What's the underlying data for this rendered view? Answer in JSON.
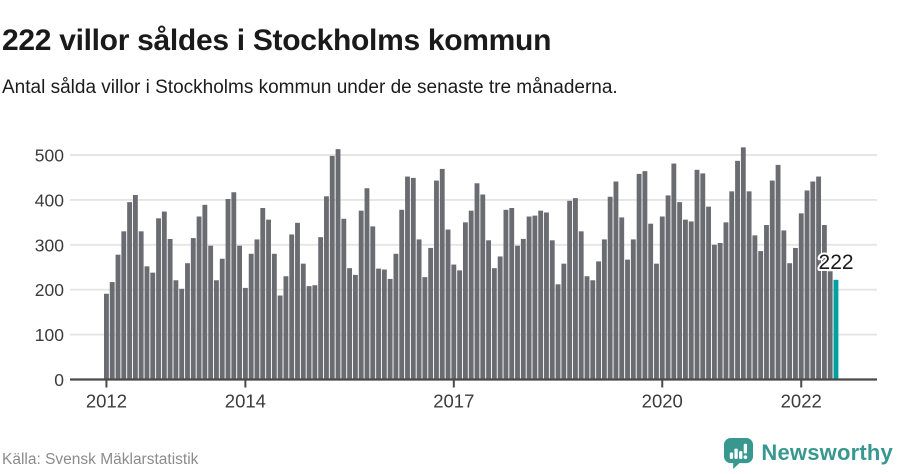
{
  "title": "222 villor såldes i Stockholms kommun",
  "subtitle": "Antal sålda villor i Stockholms kommun under de senaste tre månaderna.",
  "source": "Källa: Svensk Mäklarstatistik",
  "brand": {
    "name": "Newsworthy",
    "icon": "newsworthy-speech-bubble-barchart-icon",
    "color": "#38988f"
  },
  "annotation": {
    "label": "222"
  },
  "colors": {
    "bar": "#6b6b72",
    "highlight": "#00a1a0",
    "grid": "#e5e5e5",
    "axis": "#4a4a4a",
    "tick_label": "#3c3c3c",
    "annotation_text": "#1a1a1a",
    "annotation_halo": "#ffffff"
  },
  "chart_data": {
    "type": "bar",
    "title": "222 villor såldes i Stockholms kommun",
    "xlabel": "",
    "ylabel": "",
    "frequency": "monthly",
    "x_start": "2012-01",
    "x_end": "2022-07",
    "ylim": [
      0,
      500
    ],
    "yticks": [
      0,
      100,
      200,
      300,
      400,
      500
    ],
    "xticks": [
      "2012",
      "2014",
      "2017",
      "2020",
      "2022"
    ],
    "grid": true,
    "legend": false,
    "highlight_last_value": 222,
    "values_by_year": [
      {
        "year": 2012,
        "monthly": [
          191,
          217,
          278,
          330,
          395,
          411,
          330,
          252,
          238,
          359,
          374,
          313
        ]
      },
      {
        "year": 2013,
        "monthly": [
          221,
          202,
          259,
          315,
          363,
          389,
          298,
          221,
          269,
          402,
          417,
          298
        ]
      },
      {
        "year": 2014,
        "monthly": [
          204,
          280,
          312,
          382,
          356,
          280,
          187,
          230,
          323,
          349,
          258,
          208
        ]
      },
      {
        "year": 2015,
        "monthly": [
          210,
          317,
          408,
          498,
          513,
          358,
          248,
          233,
          376,
          426,
          341,
          247
        ]
      },
      {
        "year": 2016,
        "monthly": [
          245,
          224,
          280,
          378,
          452,
          449,
          312,
          228,
          293,
          443,
          469,
          334
        ]
      },
      {
        "year": 2017,
        "monthly": [
          256,
          243,
          350,
          376,
          437,
          412,
          310,
          248,
          274,
          378,
          382,
          298
        ]
      },
      {
        "year": 2018,
        "monthly": [
          313,
          363,
          365,
          376,
          372,
          310,
          212,
          258,
          398,
          404,
          330,
          230
        ]
      },
      {
        "year": 2019,
        "monthly": [
          221,
          263,
          312,
          407,
          441,
          361,
          267,
          312,
          458,
          464,
          347,
          258
        ]
      },
      {
        "year": 2020,
        "monthly": [
          363,
          410,
          481,
          395,
          356,
          352,
          467,
          459,
          385,
          300,
          304,
          350
        ]
      },
      {
        "year": 2021,
        "monthly": [
          419,
          487,
          517,
          419,
          321,
          286,
          344,
          443,
          478,
          332,
          259,
          293
        ]
      },
      {
        "year": 2022,
        "monthly": [
          370,
          421,
          441,
          452,
          344,
          241,
          222
        ]
      }
    ]
  }
}
